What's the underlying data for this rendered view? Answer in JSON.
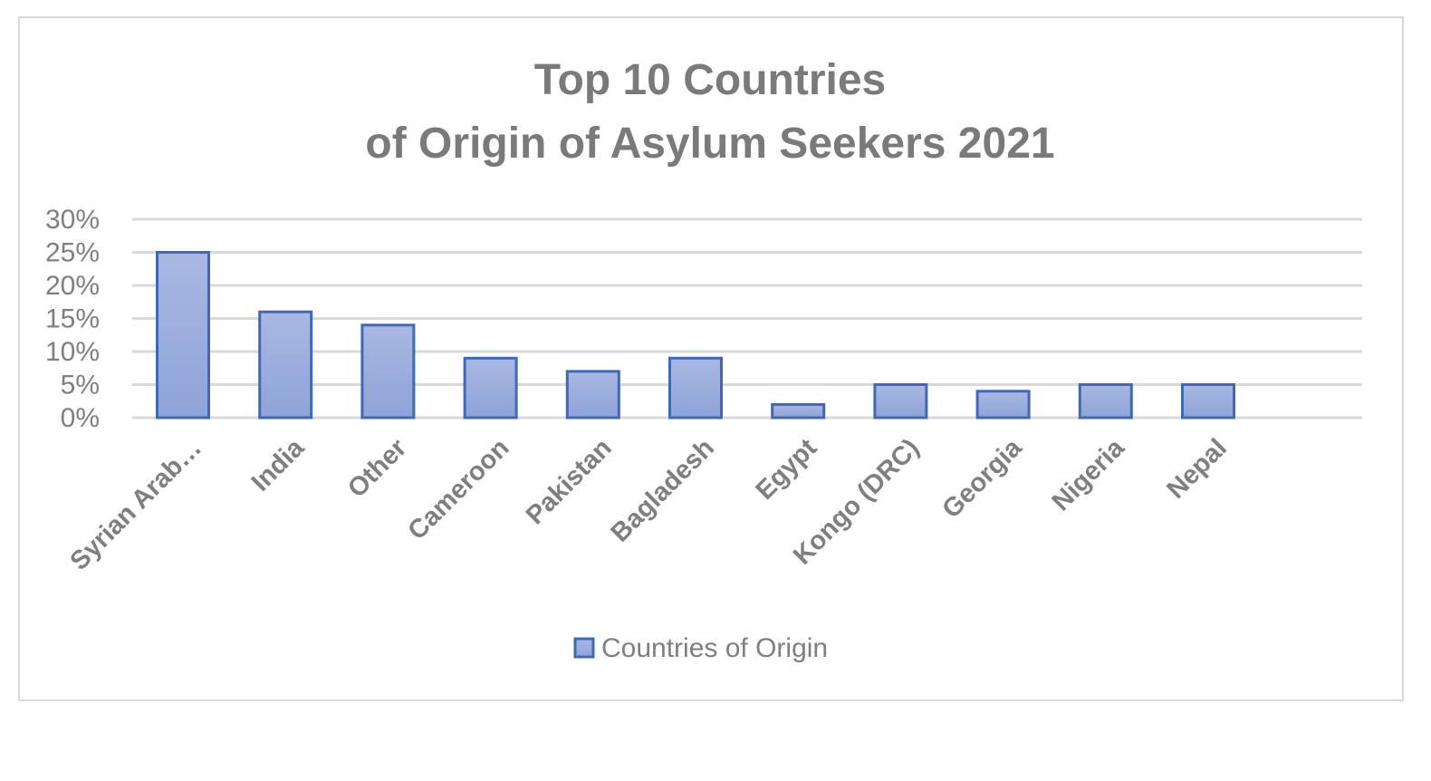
{
  "chart_data": {
    "type": "bar",
    "title": [
      "Top 10 Countries",
      "of Origin of Asylum Seekers 2021"
    ],
    "categories": [
      "Syrian Arab…",
      "India",
      "Other",
      "Cameroon",
      "Pakistan",
      "Bagladesh",
      "Egypt",
      "Kongo (DRC)",
      "Georgia",
      "Nigeria",
      "Nepal"
    ],
    "series": [
      {
        "name": "Countries of Origin",
        "values": [
          25,
          16,
          14,
          9,
          7,
          9,
          2,
          5,
          4,
          5,
          5
        ]
      }
    ],
    "ylim": [
      0,
      30
    ],
    "yticks": [
      "0%",
      "5%",
      "10%",
      "15%",
      "20%",
      "25%",
      "30%"
    ],
    "ytick_values": [
      0,
      5,
      10,
      15,
      20,
      25,
      30
    ],
    "xlabel": "",
    "ylabel": "",
    "grid": true,
    "legend_position": "bottom",
    "colors": {
      "bar_fill_top": "#a9b8e3",
      "bar_fill_bottom": "#8ea3d8",
      "bar_stroke": "#3f68b8",
      "grid": "#d9d9d9",
      "text": "#7f7f7f",
      "title": "#7a7a7a"
    }
  }
}
